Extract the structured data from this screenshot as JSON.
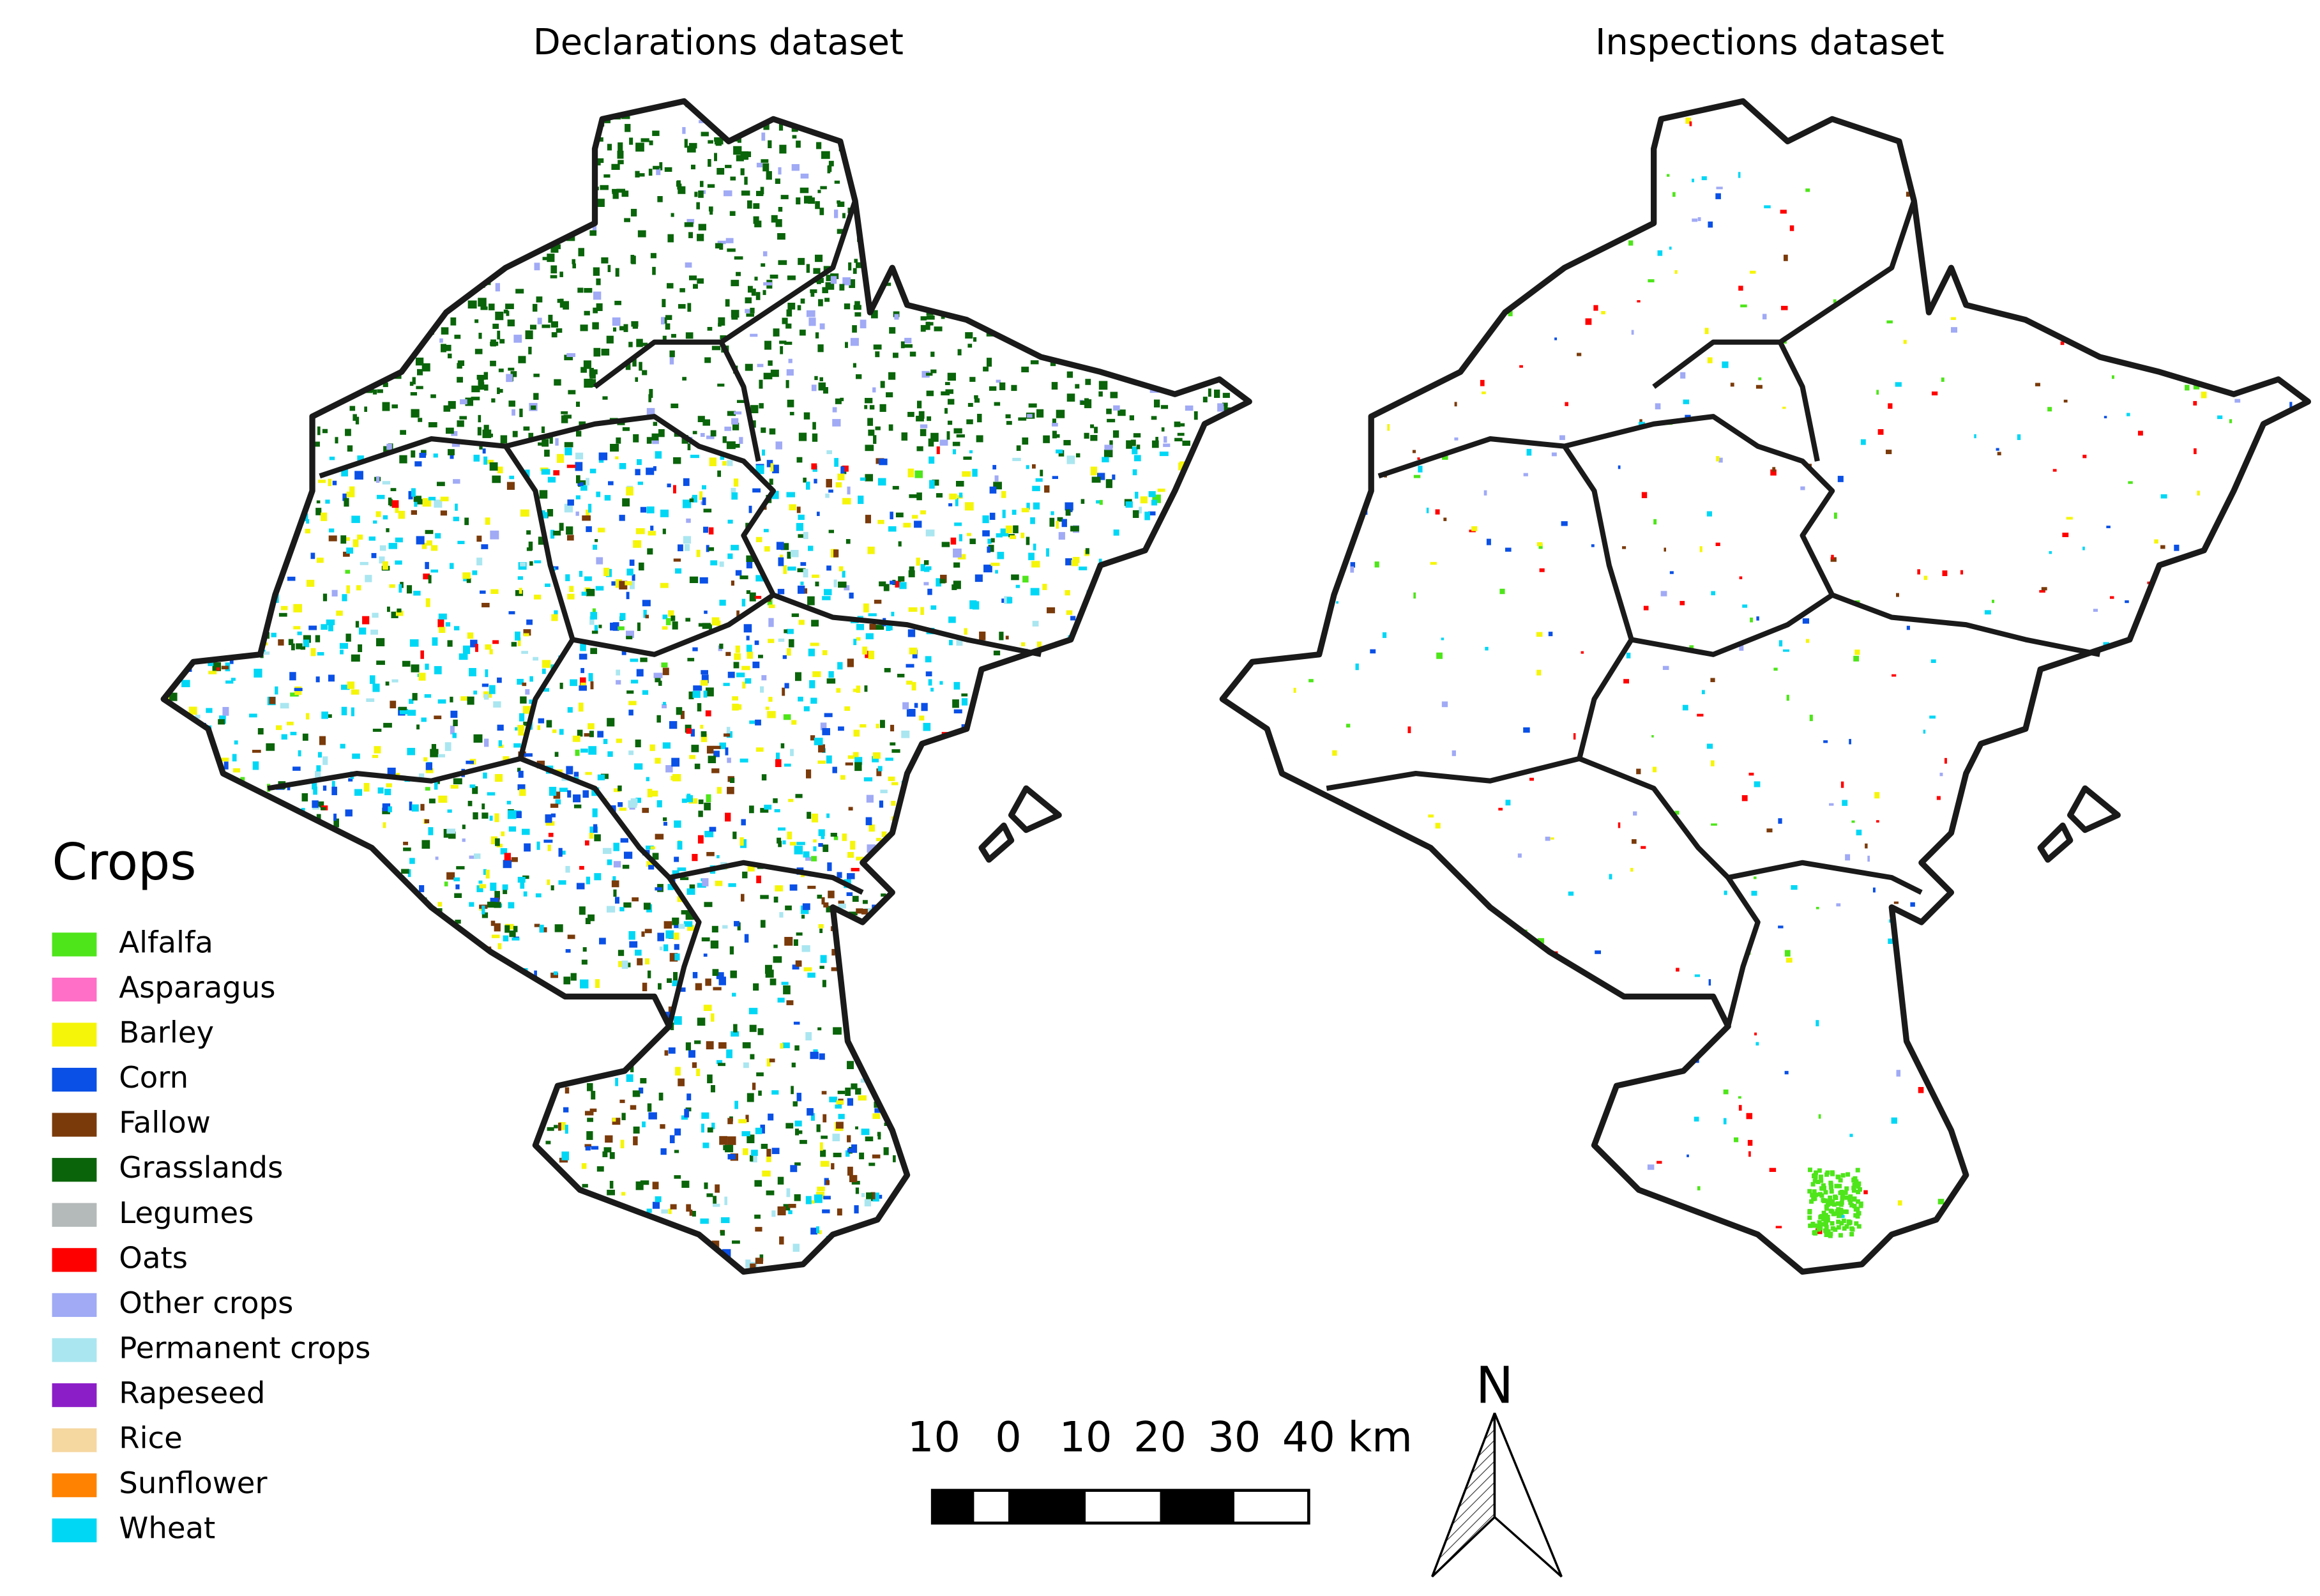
{
  "titles": {
    "left": "Declarations dataset",
    "right": "Inspections dataset"
  },
  "legend": {
    "title": "Crops",
    "items": [
      {
        "label": "Alfalfa",
        "color": "#4ee51a"
      },
      {
        "label": "Asparagus",
        "color": "#ff6ec7"
      },
      {
        "label": "Barley",
        "color": "#f5f50a"
      },
      {
        "label": "Corn",
        "color": "#0a50e6"
      },
      {
        "label": "Fallow",
        "color": "#7a3a0a"
      },
      {
        "label": "Grasslands",
        "color": "#0a640a"
      },
      {
        "label": "Legumes",
        "color": "#b4b9b9"
      },
      {
        "label": "Oats",
        "color": "#ff0000"
      },
      {
        "label": "Other crops",
        "color": "#a0aaf5"
      },
      {
        "label": "Permanent crops",
        "color": "#aae6f0"
      },
      {
        "label": "Rapeseed",
        "color": "#8c1ec8"
      },
      {
        "label": "Rice",
        "color": "#f5d7a0"
      },
      {
        "label": "Sunflower",
        "color": "#ff8200"
      },
      {
        "label": "Wheat",
        "color": "#00d7f5"
      }
    ]
  },
  "scale_bar": {
    "labels": [
      "10",
      "0",
      "10",
      "20",
      "30",
      "40"
    ],
    "unit": "km"
  },
  "north_arrow": {
    "label": "N"
  }
}
